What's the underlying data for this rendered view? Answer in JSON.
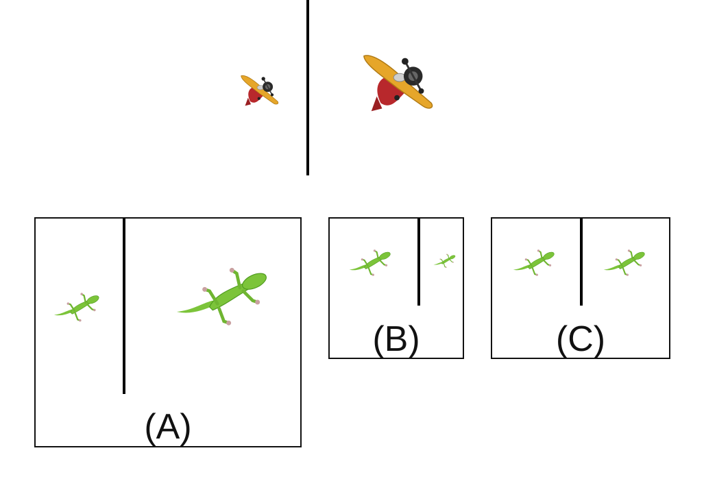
{
  "reference": {
    "left_image": "airplane-icon",
    "right_image": "airplane-icon"
  },
  "options": [
    {
      "label": "(A)",
      "left_image": "gecko-icon",
      "right_image": "gecko-icon"
    },
    {
      "label": "(B)",
      "left_image": "gecko-icon",
      "right_image": "gecko-icon"
    },
    {
      "label": "(C)",
      "left_image": "gecko-icon",
      "right_image": "gecko-icon"
    }
  ],
  "colors": {
    "gecko": "#7cc43a",
    "gecko_dark": "#4f9a1f",
    "gecko_toes": "#c9a0a0",
    "plane_wing": "#e6a62a",
    "plane_body": "#b8282c",
    "plane_engine": "#2a2a2a"
  }
}
